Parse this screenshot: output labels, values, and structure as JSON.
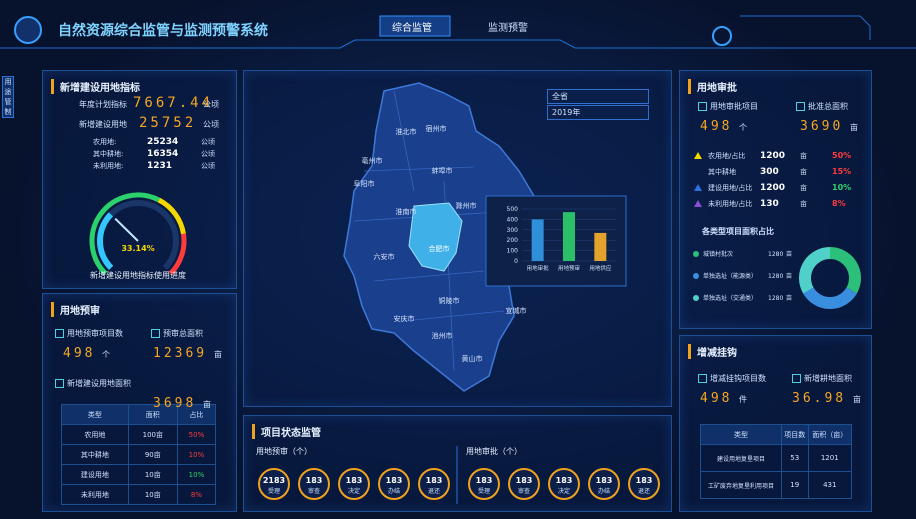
{
  "header": {
    "title": "自然资源综合监管与监测预警系统",
    "tabs": [
      "综合监管",
      "监测预警"
    ]
  },
  "side_tab": "用途管制",
  "new_construction": {
    "title": "新增建设用地指标",
    "plan_label": "年度计划指标",
    "plan_value": 7667.44,
    "plan_unit": "公顷",
    "new_label": "新增建设用地",
    "new_value": 25752,
    "new_unit": "公顷",
    "rows": [
      [
        "农用地:",
        25234,
        "公顷"
      ],
      [
        "其中耕地:",
        16354,
        "公顷"
      ],
      [
        "未利用地:",
        1231,
        "公顷"
      ]
    ],
    "gauge": {
      "type": "gauge",
      "value": 33.14,
      "value_label": "33.14%",
      "lim": [
        0,
        100
      ],
      "caption": "新增建设用地指标使用进度"
    }
  },
  "pre_review": {
    "title": "用地预审",
    "items": [
      {
        "label": "用地预审项目数",
        "value": 498,
        "unit": "个"
      },
      {
        "label": "预审总面积",
        "value": 12369,
        "unit": "亩"
      },
      {
        "label": "新增建设用地面积",
        "value": 3698,
        "unit": "亩"
      }
    ],
    "table": {
      "header": [
        "类型",
        "面积",
        "占比"
      ],
      "rows": [
        [
          "农用地",
          "100亩",
          "50%"
        ],
        [
          "其中耕地",
          "90亩",
          "10%"
        ],
        [
          "建设用地",
          "10亩",
          "10%"
        ],
        [
          "未利用地",
          "10亩",
          "8%"
        ]
      ]
    }
  },
  "map": {
    "selects": [
      "全省",
      "2019年"
    ],
    "cities": [
      "淮北市",
      "宿州市",
      "亳州市",
      "蚌埠市",
      "阜阳市",
      "淮南市",
      "滁州市",
      "合肥市",
      "六安市",
      "铜陵市",
      "安庆市",
      "池州市",
      "宣城市",
      "黄山市"
    ],
    "popup": {
      "type": "bar",
      "categories": [
        "用地审批",
        "用地预审",
        "用地供应"
      ],
      "values": [
        400,
        470,
        270
      ],
      "colors": [
        "#2f8fd8",
        "#2bbf6a",
        "#e3a22b"
      ],
      "ylim": [
        0,
        500
      ],
      "yticks": [
        0,
        100,
        200,
        300,
        400,
        500
      ]
    }
  },
  "status": {
    "title": "项目状态监管",
    "groups": [
      {
        "title": "用地预审（个）",
        "items": [
          {
            "value": 2183,
            "label": "受理"
          },
          {
            "value": 183,
            "label": "审查"
          },
          {
            "value": 183,
            "label": "决定"
          },
          {
            "value": 183,
            "label": "办结"
          },
          {
            "value": 183,
            "label": "退还"
          }
        ]
      },
      {
        "title": "用地审批（个）",
        "items": [
          {
            "value": 183,
            "label": "受理"
          },
          {
            "value": 183,
            "label": "审查"
          },
          {
            "value": 183,
            "label": "决定"
          },
          {
            "value": 183,
            "label": "办结"
          },
          {
            "value": 183,
            "label": "退还"
          }
        ]
      }
    ]
  },
  "approval": {
    "title": "用地审批",
    "items": [
      {
        "label": "用地审批项目",
        "value": 498,
        "unit": "个"
      },
      {
        "label": "批准总面积",
        "value": 3690,
        "unit": "亩"
      }
    ],
    "rows": [
      {
        "name": "农用地/占比",
        "value": 1200,
        "unit": "亩",
        "pct": "50%",
        "marker": "#f5d700",
        "pct_color": "#ff3b3b"
      },
      {
        "name": "其中耕地",
        "value": 300,
        "unit": "亩",
        "pct": "15%",
        "marker": null,
        "pct_color": "#ff3b3b"
      },
      {
        "name": "建设用地/占比",
        "value": 1200,
        "unit": "亩",
        "pct": "10%",
        "marker": "#2f6fe0",
        "pct_color": "#2bd16a"
      },
      {
        "name": "未利用地/占比",
        "value": 130,
        "unit": "亩",
        "pct": "8%",
        "marker": "#8a4fd8",
        "pct_color": "#ff3b3b"
      }
    ],
    "pie": {
      "type": "pie",
      "title": "各类型项目面积占比",
      "names": [
        "城镇村批次",
        "单独选址（能源类）",
        "单独选址（交通类）"
      ],
      "values": [
        1280,
        1280,
        1280
      ],
      "unit": "亩",
      "colors": [
        "#2bbf7a",
        "#3a8ee0",
        "#4fd0c8"
      ]
    }
  },
  "link": {
    "title": "增减挂钩",
    "items": [
      {
        "label": "增减挂钩项目数",
        "value": 498,
        "unit": "件"
      },
      {
        "label": "新增耕地面积",
        "value": 36.98,
        "unit": "亩"
      }
    ],
    "table": {
      "header": [
        "类型",
        "项目数",
        "面积（亩）"
      ],
      "rows": [
        [
          "建设用地复垦项目",
          53,
          1201
        ],
        [
          "工矿废弃地复垦利用项目",
          19,
          431
        ]
      ]
    }
  }
}
